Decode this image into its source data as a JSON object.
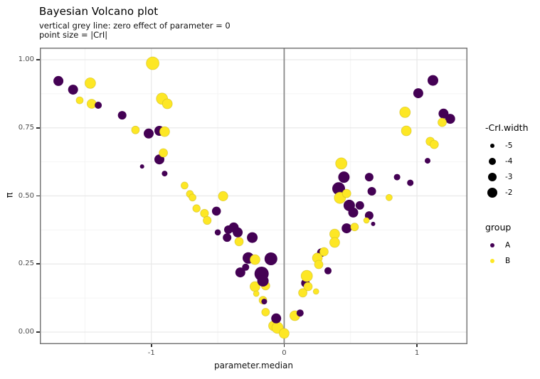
{
  "chart_data": {
    "type": "scatter",
    "title": "Bayesian Volcano plot",
    "subtitle1": "vertical grey line: zero effect of parameter = 0",
    "subtitle2": "point size = |CrI|",
    "xlabel": "parameter.median",
    "ylabel": "π",
    "xlim": [
      -1.84,
      1.38
    ],
    "ylim": [
      -0.0444,
      1.0444
    ],
    "x_ticks": [
      {
        "v": -1,
        "label": "-1"
      },
      {
        "v": 0,
        "label": "0"
      },
      {
        "v": 1,
        "label": "1"
      }
    ],
    "y_ticks": [
      {
        "v": 0,
        "label": "0.00"
      },
      {
        "v": 0.25,
        "label": "0.25"
      },
      {
        "v": 0.5,
        "label": "0.50"
      },
      {
        "v": 0.75,
        "label": "0.75"
      },
      {
        "v": 1,
        "label": "1.00"
      }
    ],
    "x_minor": [
      -1.5,
      -0.5,
      0.5
    ],
    "y_minor": [
      0.125,
      0.375,
      0.625,
      0.875
    ],
    "grid": true,
    "legend_position": "right",
    "vline_x": 0,
    "colors": {
      "group_A": "#440154",
      "group_B": "#FDE725",
      "vline": "#8a8a8a",
      "grid_major": "#e9e9e9",
      "grid_minor": "#f4f4f4",
      "panel_border": "#787878",
      "tick": "#333333",
      "tick_text": "#4d4d4d"
    },
    "size_legend": {
      "title": "-CrI.width",
      "entries": [
        {
          "label": "-5",
          "r": 3
        },
        {
          "label": "-4",
          "r": 5
        },
        {
          "label": "-3",
          "r": 6
        },
        {
          "label": "-2",
          "r": 7
        }
      ]
    },
    "group_legend": {
      "title": "group",
      "entries": [
        {
          "label": "A",
          "color": "#440154",
          "r": 3.2
        },
        {
          "label": "B",
          "color": "#FDE725",
          "r": 3.2
        }
      ]
    },
    "point_fields": [
      "parameter.median",
      "pi",
      "radius_px",
      "group"
    ],
    "points": [
      [
        -1.7,
        0.922,
        7,
        "A"
      ],
      [
        -1.59,
        0.89,
        7,
        "A"
      ],
      [
        -1.22,
        0.796,
        6,
        "A"
      ],
      [
        -1.02,
        0.729,
        7,
        "A"
      ],
      [
        -0.94,
        0.739,
        7,
        "A"
      ],
      [
        -0.94,
        0.634,
        7,
        "A"
      ],
      [
        -1.07,
        0.608,
        3,
        "A"
      ],
      [
        -0.9,
        0.582,
        4,
        "A"
      ],
      [
        -0.51,
        0.444,
        6.3,
        "A"
      ],
      [
        -0.5,
        0.366,
        4.3,
        "A"
      ],
      [
        -0.42,
        0.376,
        6,
        "A"
      ],
      [
        -0.38,
        0.384,
        7,
        "A"
      ],
      [
        -0.35,
        0.366,
        7,
        "A"
      ],
      [
        -0.43,
        0.347,
        6,
        "A"
      ],
      [
        -0.24,
        0.347,
        7.5,
        "A"
      ],
      [
        -0.27,
        0.272,
        8,
        "A"
      ],
      [
        -0.29,
        0.238,
        5,
        "A"
      ],
      [
        -0.33,
        0.219,
        7,
        "A"
      ],
      [
        0.16,
        0.18,
        6,
        "A"
      ],
      [
        0.28,
        0.292,
        6,
        "A"
      ],
      [
        0.45,
        0.569,
        8,
        "A"
      ],
      [
        0.41,
        0.527,
        9,
        "A"
      ],
      [
        0.49,
        0.465,
        8,
        "A"
      ],
      [
        0.57,
        0.465,
        6,
        "A"
      ],
      [
        0.52,
        0.439,
        7,
        "A"
      ],
      [
        0.64,
        0.428,
        6,
        "A"
      ],
      [
        0.47,
        0.381,
        7,
        "A"
      ],
      [
        0.64,
        0.569,
        6,
        "A"
      ],
      [
        0.66,
        0.517,
        6,
        "A"
      ],
      [
        1.12,
        0.924,
        7.5,
        "A"
      ],
      [
        1.01,
        0.877,
        7,
        "A"
      ],
      [
        1.2,
        0.802,
        7,
        "A"
      ],
      [
        1.25,
        0.783,
        7,
        "A"
      ],
      [
        0.33,
        0.225,
        5,
        "A"
      ],
      [
        -0.99,
        0.987,
        9,
        "B"
      ],
      [
        -1.46,
        0.914,
        7.5,
        "B"
      ],
      [
        -1.54,
        0.851,
        5,
        "B"
      ],
      [
        -1.45,
        0.838,
        6.5,
        "B"
      ],
      [
        -0.92,
        0.857,
        8,
        "B"
      ],
      [
        -0.88,
        0.838,
        7,
        "B"
      ],
      [
        -1.12,
        0.742,
        5.5,
        "B"
      ],
      [
        -0.9,
        0.736,
        7,
        "B"
      ],
      [
        -0.91,
        0.658,
        6,
        "B"
      ],
      [
        -0.75,
        0.538,
        5,
        "B"
      ],
      [
        -0.71,
        0.507,
        5,
        "B"
      ],
      [
        -0.69,
        0.494,
        5,
        "B"
      ],
      [
        -0.66,
        0.454,
        5.3,
        "B"
      ],
      [
        -0.6,
        0.436,
        5.7,
        "B"
      ],
      [
        -0.58,
        0.41,
        5.7,
        "B"
      ],
      [
        -0.46,
        0.499,
        6.7,
        "B"
      ],
      [
        -0.34,
        0.332,
        6,
        "B"
      ],
      [
        -0.22,
        0.266,
        7,
        "B"
      ],
      [
        -0.22,
        0.167,
        7,
        "B"
      ],
      [
        -0.14,
        0.17,
        6,
        "B"
      ],
      [
        -0.21,
        0.141,
        4,
        "B"
      ],
      [
        -0.16,
        0.117,
        5.5,
        "B"
      ],
      [
        -0.14,
        0.073,
        5.5,
        "B"
      ],
      [
        -0.08,
        0.023,
        7,
        "B"
      ],
      [
        -0.05,
        0.016,
        8,
        "B"
      ],
      [
        0.0,
        -0.005,
        7,
        "B"
      ],
      [
        0.08,
        0.06,
        7,
        "B"
      ],
      [
        0.17,
        0.206,
        8,
        "B"
      ],
      [
        0.18,
        0.167,
        6,
        "B"
      ],
      [
        0.14,
        0.144,
        6,
        "B"
      ],
      [
        0.24,
        0.149,
        4,
        "B"
      ],
      [
        0.25,
        0.272,
        7,
        "B"
      ],
      [
        0.26,
        0.248,
        6,
        "B"
      ],
      [
        0.3,
        0.295,
        6,
        "B"
      ],
      [
        0.38,
        0.36,
        7,
        "B"
      ],
      [
        0.38,
        0.329,
        7,
        "B"
      ],
      [
        0.53,
        0.386,
        5.5,
        "B"
      ],
      [
        0.62,
        0.41,
        4,
        "B"
      ],
      [
        0.43,
        0.619,
        8,
        "B"
      ],
      [
        0.42,
        0.493,
        8,
        "B"
      ],
      [
        0.47,
        0.509,
        6,
        "B"
      ],
      [
        0.79,
        0.494,
        4.5,
        "B"
      ],
      [
        0.91,
        0.807,
        7.5,
        "B"
      ],
      [
        0.92,
        0.739,
        7,
        "B"
      ],
      [
        1.1,
        0.7,
        6,
        "B"
      ],
      [
        1.13,
        0.689,
        6,
        "B"
      ],
      [
        1.19,
        0.77,
        6,
        "B"
      ],
      [
        -1.4,
        0.833,
        5,
        "A"
      ],
      [
        -0.1,
        0.269,
        9,
        "A"
      ],
      [
        -0.17,
        0.214,
        10,
        "A"
      ],
      [
        -0.16,
        0.188,
        8,
        "A"
      ],
      [
        -0.15,
        0.112,
        4,
        "A"
      ],
      [
        -0.06,
        0.05,
        7,
        "A"
      ],
      [
        0.12,
        0.07,
        5,
        "A"
      ],
      [
        1.08,
        0.629,
        4,
        "A"
      ],
      [
        0.85,
        0.569,
        4.5,
        "A"
      ],
      [
        0.95,
        0.548,
        4.5,
        "A"
      ],
      [
        0.67,
        0.397,
        3,
        "A"
      ]
    ]
  }
}
